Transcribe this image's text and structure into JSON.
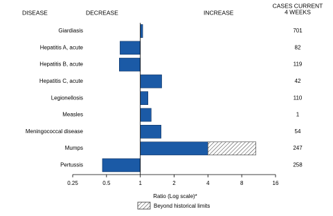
{
  "chart_data": {
    "type": "bar",
    "orientation": "horizontal",
    "log_scale": true,
    "column_headers": {
      "disease": "DISEASE",
      "decrease": "DECREASE",
      "increase": "INCREASE",
      "cases_line1": "CASES CURRENT",
      "cases_line2": "4 WEEKS"
    },
    "categories": [
      "Giardiasis",
      "Hepatitis A, acute",
      "Hepatitis B, acute",
      "Hepatitis C, acute",
      "Legionellosis",
      "Measles",
      "Meningococcal disease",
      "Mumps",
      "Pertussis"
    ],
    "values": [
      1.05,
      0.66,
      0.65,
      1.55,
      1.17,
      1.25,
      1.53,
      10.7,
      0.46
    ],
    "historical_limit": [
      null,
      null,
      null,
      null,
      null,
      null,
      null,
      4.0,
      null
    ],
    "cases": [
      701,
      82,
      119,
      42,
      110,
      1,
      54,
      247,
      258
    ],
    "color": "#1b5aa6",
    "xlim": [
      0.25,
      16
    ],
    "xticks": [
      0.25,
      0.5,
      1,
      2,
      4,
      8,
      16
    ],
    "x_label": "Ratio (Log scale)*",
    "legend_label": "Beyond historical limits"
  }
}
